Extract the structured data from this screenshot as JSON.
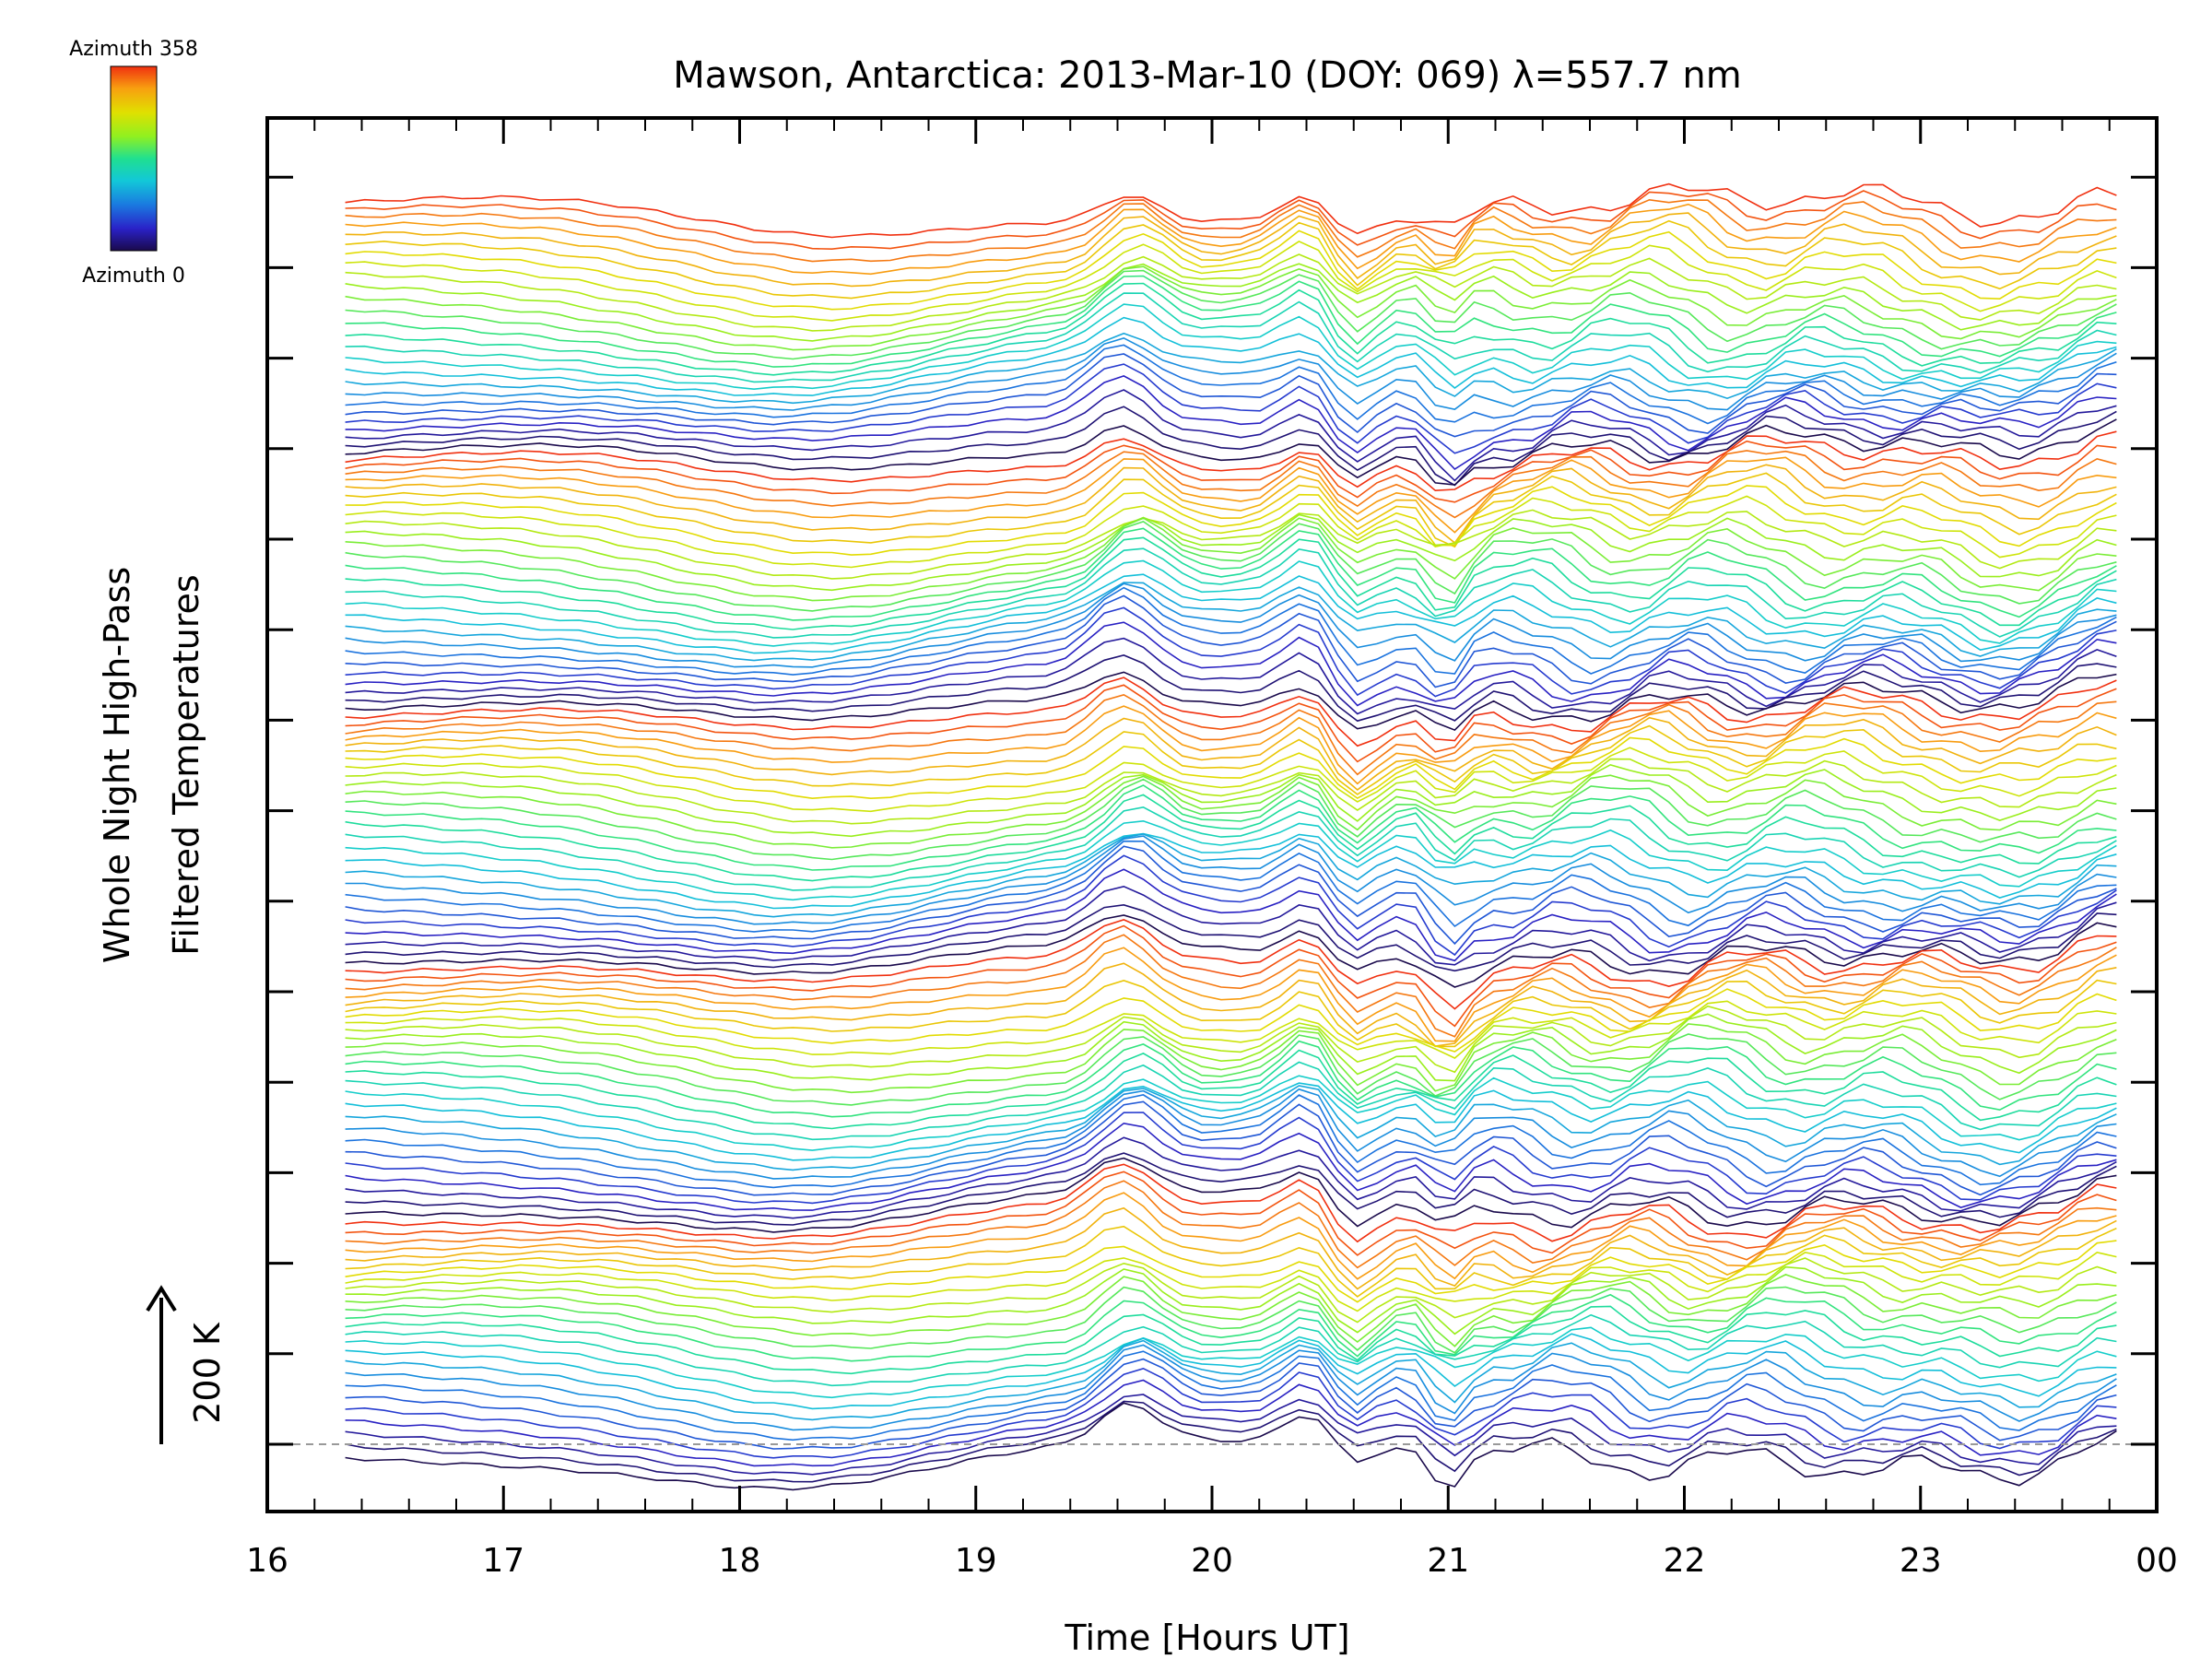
{
  "chart_data": {
    "type": "line",
    "title": "Mawson, Antarctica: 2013-Mar-10 (DOY: 069) λ=557.7 nm",
    "xlabel": "Time [Hours UT]",
    "ylabel_line1": "Whole Night High-Pass",
    "ylabel_line2": "Filtered Temperatures",
    "scale_label": "200 K",
    "scale_value_K": 200,
    "xlim": [
      16,
      24
    ],
    "x_tick_labels": [
      "16",
      "17",
      "18",
      "19",
      "20",
      "21",
      "22",
      "23",
      "00"
    ],
    "colorbar": {
      "max_label": "Azimuth 358",
      "min_label": "Azimuth 0",
      "max_value": 358,
      "min_value": 0,
      "colors": [
        "#1a0a4c",
        "#2a22c8",
        "#1a7ae0",
        "#12c8d8",
        "#20e090",
        "#90f020",
        "#e0e000",
        "#f8a010",
        "#f03010"
      ]
    },
    "grid": false,
    "series_count": 130,
    "x_start_hours": 16.33,
    "x_end_hours": 23.83,
    "baseline_style": "dashed-gray",
    "line_color_encoding": "azimuth",
    "approximate": "Stacked offset traces reconstructed; values approximate"
  }
}
